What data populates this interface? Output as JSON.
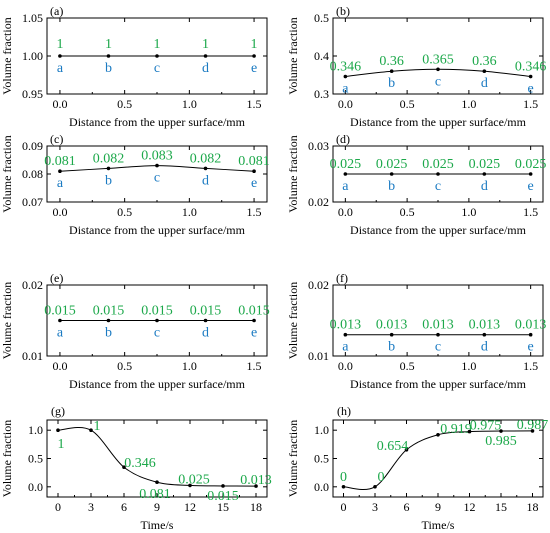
{
  "chart_data": [
    {
      "panel": "(a)",
      "type": "line",
      "xlabel": "Distance from the upper surface/mm",
      "ylabel": "Volume fraction",
      "xlim": [
        -0.1,
        1.6
      ],
      "ylim": [
        0.95,
        1.05
      ],
      "xticks": [
        "0.0",
        "0.5",
        "1.0",
        "1.5"
      ],
      "xtick_values": [
        0,
        0.5,
        1.0,
        1.5
      ],
      "yticks": [
        "0.95",
        "1.00",
        "1.05"
      ],
      "ytick_values": [
        0.95,
        1.0,
        1.05
      ],
      "x": [
        0,
        0.375,
        0.75,
        1.125,
        1.5
      ],
      "values": [
        1,
        1,
        1,
        1,
        1
      ],
      "value_labels": [
        "1",
        "1",
        "1",
        "1",
        "1"
      ],
      "point_labels": [
        "a",
        "b",
        "c",
        "d",
        "e"
      ]
    },
    {
      "panel": "(b)",
      "type": "line",
      "xlabel": "Distance from the upper surface/mm",
      "ylabel": "Volume fraction",
      "xlim": [
        -0.1,
        1.6
      ],
      "ylim": [
        0.3,
        0.5
      ],
      "xticks": [
        "0.0",
        "0.5",
        "1.0",
        "1.5"
      ],
      "xtick_values": [
        0,
        0.5,
        1.0,
        1.5
      ],
      "yticks": [
        "0.3",
        "0.4",
        "0.5"
      ],
      "ytick_values": [
        0.3,
        0.4,
        0.5
      ],
      "x": [
        0,
        0.375,
        0.75,
        1.125,
        1.5
      ],
      "values": [
        0.346,
        0.36,
        0.365,
        0.36,
        0.346
      ],
      "value_labels": [
        "0.346",
        "0.36",
        "0.365",
        "0.36",
        "0.346"
      ],
      "point_labels": [
        "a",
        "b",
        "c",
        "d",
        "e"
      ]
    },
    {
      "panel": "(c)",
      "type": "line",
      "xlabel": "Distance from the upper surface/mm",
      "ylabel": "Volume fraction",
      "xlim": [
        -0.1,
        1.6
      ],
      "ylim": [
        0.07,
        0.09
      ],
      "xticks": [
        "0.0",
        "0.5",
        "1.0",
        "1.5"
      ],
      "xtick_values": [
        0,
        0.5,
        1.0,
        1.5
      ],
      "yticks": [
        "0.07",
        "0.08",
        "0.09"
      ],
      "ytick_values": [
        0.07,
        0.08,
        0.09
      ],
      "x": [
        0,
        0.375,
        0.75,
        1.125,
        1.5
      ],
      "values": [
        0.081,
        0.082,
        0.083,
        0.082,
        0.081
      ],
      "value_labels": [
        "0.081",
        "0.082",
        "0.083",
        "0.082",
        "0.081"
      ],
      "point_labels": [
        "a",
        "b",
        "c",
        "d",
        "e"
      ]
    },
    {
      "panel": "(d)",
      "type": "line",
      "xlabel": "Distance from the upper surface/mm",
      "ylabel": "Volume fraction",
      "xlim": [
        -0.1,
        1.6
      ],
      "ylim": [
        0.02,
        0.03
      ],
      "xticks": [
        "0.0",
        "0.5",
        "1.0",
        "1.5"
      ],
      "xtick_values": [
        0,
        0.5,
        1.0,
        1.5
      ],
      "yticks": [
        "0.02",
        "0.03"
      ],
      "ytick_values": [
        0.02,
        0.03
      ],
      "x": [
        0,
        0.375,
        0.75,
        1.125,
        1.5
      ],
      "values": [
        0.025,
        0.025,
        0.025,
        0.025,
        0.025
      ],
      "value_labels": [
        "0.025",
        "0.025",
        "0.025",
        "0.025",
        "0.025"
      ],
      "point_labels": [
        "a",
        "b",
        "c",
        "d",
        "e"
      ]
    },
    {
      "panel": "(e)",
      "type": "line",
      "xlabel": "Distance from the upper surface/mm",
      "ylabel": "Volume fraction",
      "xlim": [
        -0.1,
        1.6
      ],
      "ylim": [
        0.01,
        0.02
      ],
      "xticks": [
        "0.0",
        "0.5",
        "1.0",
        "1.5"
      ],
      "xtick_values": [
        0,
        0.5,
        1.0,
        1.5
      ],
      "yticks": [
        "0.01",
        "0.02"
      ],
      "ytick_values": [
        0.01,
        0.02
      ],
      "x": [
        0,
        0.375,
        0.75,
        1.125,
        1.5
      ],
      "values": [
        0.015,
        0.015,
        0.015,
        0.015,
        0.015
      ],
      "value_labels": [
        "0.015",
        "0.015",
        "0.015",
        "0.015",
        "0.015"
      ],
      "point_labels": [
        "a",
        "b",
        "c",
        "d",
        "e"
      ]
    },
    {
      "panel": "(f)",
      "type": "line",
      "xlabel": "Distance from the upper surface/mm",
      "ylabel": "Volume fraction",
      "xlim": [
        -0.1,
        1.6
      ],
      "ylim": [
        0.01,
        0.02
      ],
      "xticks": [
        "0.0",
        "0.5",
        "1.0",
        "1.5"
      ],
      "xtick_values": [
        0,
        0.5,
        1.0,
        1.5
      ],
      "yticks": [
        "0.01",
        "0.02"
      ],
      "ytick_values": [
        0.01,
        0.02
      ],
      "x": [
        0,
        0.375,
        0.75,
        1.125,
        1.5
      ],
      "values": [
        0.013,
        0.013,
        0.013,
        0.013,
        0.013
      ],
      "value_labels": [
        "0.013",
        "0.013",
        "0.013",
        "0.013",
        "0.013"
      ],
      "point_labels": [
        "a",
        "b",
        "c",
        "d",
        "e"
      ]
    },
    {
      "panel": "(g)",
      "type": "line",
      "xlabel": "Time/s",
      "ylabel": "Volume fraction",
      "xlim": [
        -1,
        19
      ],
      "ylim": [
        -0.18,
        1.18
      ],
      "xticks": [
        "0",
        "3",
        "6",
        "9",
        "12",
        "15",
        "18"
      ],
      "xtick_values": [
        0,
        3,
        6,
        9,
        12,
        15,
        18
      ],
      "yticks": [
        "0.0",
        "0.5",
        "1.0"
      ],
      "ytick_values": [
        0,
        0.5,
        1.0
      ],
      "x": [
        0,
        3,
        6,
        9,
        12,
        15,
        18
      ],
      "values": [
        1,
        1,
        0.346,
        0.081,
        0.025,
        0.015,
        0.013
      ],
      "value_labels": [
        "1",
        "1",
        "0.346",
        "0.081",
        "0.025",
        "0.015",
        "0.013"
      ]
    },
    {
      "panel": "(h)",
      "type": "line",
      "xlabel": "Time/s",
      "ylabel": "Volume fraction",
      "xlim": [
        -1,
        19
      ],
      "ylim": [
        -0.18,
        1.18
      ],
      "xticks": [
        "0",
        "3",
        "6",
        "9",
        "12",
        "15",
        "18"
      ],
      "xtick_values": [
        0,
        3,
        6,
        9,
        12,
        15,
        18
      ],
      "yticks": [
        "0.0",
        "0.5",
        "1.0"
      ],
      "ytick_values": [
        0,
        0.5,
        1.0
      ],
      "x": [
        0,
        3,
        6,
        9,
        12,
        15,
        18
      ],
      "values": [
        0,
        0,
        0.654,
        0.919,
        0.975,
        0.985,
        0.987
      ],
      "value_labels": [
        "0",
        "0",
        "0.654",
        "0.919",
        "0.975",
        "0.985",
        "0.987"
      ]
    }
  ]
}
